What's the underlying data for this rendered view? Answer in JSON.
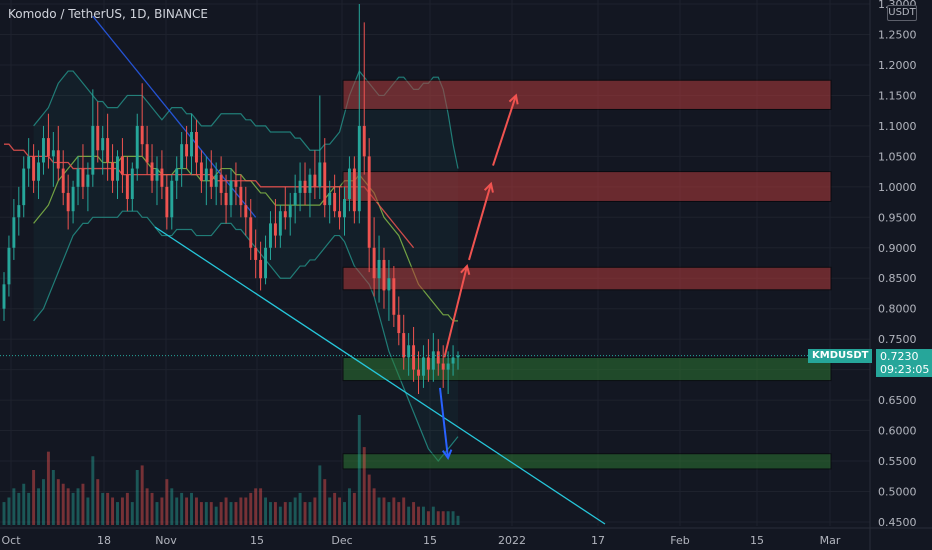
{
  "header": {
    "title": "Komodo / TetherUS, 1D, BINANCE",
    "currency": "USDT"
  },
  "last_price": {
    "symbol": "KMDUSDT",
    "price": "0.7230",
    "countdown": "09:23:05",
    "value": 0.723
  },
  "colors": {
    "bg": "#131722",
    "up": "#26a69a",
    "down": "#ef5350",
    "ma": "#ef5350",
    "ma_slow": "#2962ff",
    "band": "#26a69a",
    "trend": "#26c6da"
  },
  "chart_data": {
    "type": "candlestick",
    "y_ticks": [
      "1.3000",
      "1.2500",
      "1.2000",
      "1.1500",
      "1.1000",
      "1.0500",
      "1.0000",
      "0.9500",
      "0.9000",
      "0.8500",
      "0.8000",
      "0.7500",
      "0.7000",
      "0.6500",
      "0.6000",
      "0.5500",
      "0.5000",
      "0.4500"
    ],
    "ylim": [
      0.445,
      1.305
    ],
    "x_ticks": [
      "Oct",
      "18",
      "Nov",
      "15",
      "Dec",
      "15",
      "2022",
      "17",
      "Feb",
      "15",
      "Mar"
    ],
    "zones": [
      {
        "kind": "resistance",
        "top": 1.175,
        "bottom": 1.127
      },
      {
        "kind": "resistance",
        "top": 1.025,
        "bottom": 0.976
      },
      {
        "kind": "resistance",
        "top": 0.868,
        "bottom": 0.831
      },
      {
        "kind": "support",
        "top": 0.72,
        "bottom": 0.682
      },
      {
        "kind": "support",
        "top": 0.562,
        "bottom": 0.537
      }
    ],
    "candles": [
      [
        0.8,
        0.86,
        0.78,
        0.84,
        0.05
      ],
      [
        0.84,
        0.92,
        0.82,
        0.9,
        0.06
      ],
      [
        0.9,
        0.98,
        0.88,
        0.95,
        0.08
      ],
      [
        0.95,
        1.0,
        0.92,
        0.97,
        0.07
      ],
      [
        0.97,
        1.05,
        0.95,
        1.03,
        0.09
      ],
      [
        1.03,
        1.08,
        1.0,
        1.05,
        0.07
      ],
      [
        1.05,
        1.07,
        0.99,
        1.01,
        0.12
      ],
      [
        1.01,
        1.06,
        0.98,
        1.04,
        0.08
      ],
      [
        1.04,
        1.1,
        1.02,
        1.08,
        0.1
      ],
      [
        1.08,
        1.12,
        1.03,
        1.05,
        0.16
      ],
      [
        1.05,
        1.09,
        1.0,
        1.06,
        0.12
      ],
      [
        1.06,
        1.1,
        1.01,
        1.03,
        0.1
      ],
      [
        1.03,
        1.06,
        0.97,
        0.99,
        0.09
      ],
      [
        0.99,
        1.02,
        0.93,
        0.96,
        0.08
      ],
      [
        0.96,
        1.01,
        0.94,
        1.0,
        0.07
      ],
      [
        1.0,
        1.05,
        0.97,
        1.03,
        0.08
      ],
      [
        1.03,
        1.07,
        0.98,
        1.0,
        0.09
      ],
      [
        1.0,
        1.04,
        0.96,
        1.02,
        0.06
      ],
      [
        1.02,
        1.16,
        1.0,
        1.1,
        0.15
      ],
      [
        1.1,
        1.14,
        1.04,
        1.06,
        0.1
      ],
      [
        1.06,
        1.1,
        1.02,
        1.08,
        0.07
      ],
      [
        1.08,
        1.12,
        1.01,
        1.04,
        0.07
      ],
      [
        1.04,
        1.07,
        0.99,
        1.01,
        0.06
      ],
      [
        1.01,
        1.06,
        0.98,
        1.05,
        0.05
      ],
      [
        1.05,
        1.08,
        0.99,
        1.02,
        0.06
      ],
      [
        1.02,
        1.05,
        0.96,
        0.98,
        0.07
      ],
      [
        0.98,
        1.04,
        0.96,
        1.03,
        0.05
      ],
      [
        1.03,
        1.12,
        1.01,
        1.1,
        0.12
      ],
      [
        1.1,
        1.17,
        1.05,
        1.07,
        0.13
      ],
      [
        1.07,
        1.1,
        1.02,
        1.04,
        0.08
      ],
      [
        1.04,
        1.07,
        0.99,
        1.01,
        0.07
      ],
      [
        1.01,
        1.05,
        0.97,
        1.03,
        0.05
      ],
      [
        1.03,
        1.06,
        0.98,
        1.0,
        0.06
      ],
      [
        1.0,
        1.02,
        0.93,
        0.95,
        0.1
      ],
      [
        0.95,
        1.02,
        0.93,
        1.01,
        0.08
      ],
      [
        1.01,
        1.05,
        0.98,
        1.03,
        0.06
      ],
      [
        1.03,
        1.09,
        1.0,
        1.07,
        0.07
      ],
      [
        1.07,
        1.1,
        1.03,
        1.05,
        0.06
      ],
      [
        1.05,
        1.12,
        1.02,
        1.09,
        0.07
      ],
      [
        1.09,
        1.11,
        1.02,
        1.04,
        0.06
      ],
      [
        1.04,
        1.06,
        0.99,
        1.01,
        0.05
      ],
      [
        1.01,
        1.05,
        0.97,
        1.03,
        0.05
      ],
      [
        1.03,
        1.06,
        0.98,
        1.0,
        0.05
      ],
      [
        1.0,
        1.04,
        0.97,
        1.02,
        0.04
      ],
      [
        1.02,
        1.05,
        0.97,
        0.99,
        0.05
      ],
      [
        0.99,
        1.02,
        0.94,
        0.97,
        0.06
      ],
      [
        0.97,
        1.03,
        0.95,
        1.01,
        0.05
      ],
      [
        1.01,
        1.04,
        0.97,
        1.0,
        0.05
      ],
      [
        1.0,
        1.02,
        0.95,
        0.97,
        0.06
      ],
      [
        0.97,
        1.0,
        0.92,
        0.95,
        0.06
      ],
      [
        0.95,
        0.98,
        0.88,
        0.9,
        0.07
      ],
      [
        0.9,
        0.93,
        0.85,
        0.88,
        0.08
      ],
      [
        0.88,
        0.91,
        0.83,
        0.85,
        0.08
      ],
      [
        0.85,
        0.92,
        0.84,
        0.9,
        0.06
      ],
      [
        0.9,
        0.96,
        0.88,
        0.94,
        0.05
      ],
      [
        0.94,
        0.98,
        0.9,
        0.92,
        0.05
      ],
      [
        0.92,
        0.97,
        0.9,
        0.96,
        0.04
      ],
      [
        0.96,
        1.0,
        0.93,
        0.95,
        0.05
      ],
      [
        0.95,
        0.99,
        0.92,
        0.97,
        0.05
      ],
      [
        0.97,
        1.02,
        0.94,
        0.99,
        0.06
      ],
      [
        0.99,
        1.04,
        0.96,
        1.01,
        0.07
      ],
      [
        1.01,
        1.04,
        0.97,
        0.99,
        0.05
      ],
      [
        0.99,
        1.03,
        0.95,
        1.02,
        0.05
      ],
      [
        1.02,
        1.06,
        0.98,
        1.0,
        0.06
      ],
      [
        1.0,
        1.15,
        0.98,
        1.04,
        0.13
      ],
      [
        1.04,
        1.08,
        0.95,
        0.97,
        0.1
      ],
      [
        0.97,
        1.01,
        0.94,
        0.99,
        0.06
      ],
      [
        0.99,
        1.02,
        0.95,
        0.96,
        0.07
      ],
      [
        0.96,
        1.0,
        0.93,
        0.95,
        0.06
      ],
      [
        0.95,
        1.0,
        0.92,
        0.98,
        0.05
      ],
      [
        0.98,
        1.05,
        0.96,
        1.03,
        0.08
      ],
      [
        1.03,
        1.05,
        0.94,
        0.96,
        0.07
      ],
      [
        0.96,
        1.3,
        0.94,
        1.1,
        0.24
      ],
      [
        1.1,
        1.27,
        1.02,
        1.05,
        0.17
      ],
      [
        1.05,
        1.08,
        0.86,
        0.9,
        0.11
      ],
      [
        0.9,
        0.95,
        0.82,
        0.85,
        0.08
      ],
      [
        0.85,
        0.92,
        0.81,
        0.88,
        0.06
      ],
      [
        0.88,
        0.9,
        0.8,
        0.83,
        0.06
      ],
      [
        0.83,
        0.88,
        0.78,
        0.85,
        0.05
      ],
      [
        0.85,
        0.87,
        0.77,
        0.79,
        0.06
      ],
      [
        0.79,
        0.82,
        0.74,
        0.76,
        0.05
      ],
      [
        0.76,
        0.79,
        0.7,
        0.72,
        0.06
      ],
      [
        0.72,
        0.76,
        0.69,
        0.74,
        0.04
      ],
      [
        0.74,
        0.77,
        0.68,
        0.7,
        0.05
      ],
      [
        0.7,
        0.73,
        0.66,
        0.69,
        0.04
      ],
      [
        0.69,
        0.74,
        0.67,
        0.72,
        0.04
      ],
      [
        0.72,
        0.75,
        0.68,
        0.7,
        0.03
      ],
      [
        0.7,
        0.76,
        0.68,
        0.73,
        0.04
      ],
      [
        0.73,
        0.75,
        0.69,
        0.71,
        0.03
      ],
      [
        0.71,
        0.74,
        0.67,
        0.7,
        0.03
      ],
      [
        0.7,
        0.73,
        0.66,
        0.71,
        0.03
      ],
      [
        0.71,
        0.74,
        0.69,
        0.72,
        0.03
      ],
      [
        0.72,
        0.73,
        0.7,
        0.723,
        0.02
      ]
    ],
    "bands": {
      "upper": [
        1.1,
        1.11,
        1.12,
        1.13,
        1.15,
        1.17,
        1.18,
        1.19,
        1.19,
        1.18,
        1.17,
        1.16,
        1.15,
        1.14,
        1.14,
        1.13,
        1.13,
        1.13,
        1.14,
        1.15,
        1.15,
        1.15,
        1.15,
        1.14,
        1.13,
        1.12,
        1.11,
        1.12,
        1.13,
        1.13,
        1.13,
        1.12,
        1.12,
        1.11,
        1.1,
        1.1,
        1.1,
        1.11,
        1.12,
        1.12,
        1.12,
        1.12,
        1.12,
        1.11,
        1.11,
        1.1,
        1.1,
        1.1,
        1.09,
        1.09,
        1.09,
        1.09,
        1.09,
        1.08,
        1.08,
        1.07,
        1.06,
        1.06,
        1.06,
        1.07,
        1.07,
        1.08,
        1.09,
        1.12,
        1.15,
        1.17,
        1.19,
        1.18,
        1.17,
        1.16,
        1.15,
        1.15,
        1.16,
        1.17,
        1.18,
        1.18,
        1.17,
        1.16,
        1.16,
        1.17,
        1.17,
        1.18,
        1.18,
        1.16,
        1.12,
        1.07,
        1.03
      ],
      "lower": [
        0.78,
        0.79,
        0.8,
        0.82,
        0.84,
        0.86,
        0.88,
        0.9,
        0.92,
        0.93,
        0.94,
        0.94,
        0.95,
        0.95,
        0.95,
        0.95,
        0.95,
        0.95,
        0.96,
        0.96,
        0.96,
        0.96,
        0.95,
        0.95,
        0.94,
        0.93,
        0.92,
        0.92,
        0.92,
        0.93,
        0.93,
        0.93,
        0.93,
        0.92,
        0.92,
        0.92,
        0.92,
        0.93,
        0.94,
        0.94,
        0.94,
        0.93,
        0.93,
        0.92,
        0.91,
        0.9,
        0.89,
        0.88,
        0.87,
        0.86,
        0.85,
        0.85,
        0.85,
        0.86,
        0.87,
        0.87,
        0.88,
        0.88,
        0.89,
        0.9,
        0.91,
        0.92,
        0.92,
        0.91,
        0.89,
        0.87,
        0.86,
        0.85,
        0.84,
        0.82,
        0.79,
        0.76,
        0.73,
        0.71,
        0.69,
        0.67,
        0.65,
        0.63,
        0.61,
        0.59,
        0.57,
        0.56,
        0.55,
        0.56,
        0.57,
        0.58,
        0.59
      ],
      "basis": [
        0.94,
        0.95,
        0.96,
        0.97,
        0.99,
        1.01,
        1.02,
        1.03,
        1.04,
        1.05,
        1.05,
        1.05,
        1.05,
        1.05,
        1.04,
        1.04,
        1.04,
        1.04,
        1.05,
        1.05,
        1.05,
        1.05,
        1.05,
        1.04,
        1.03,
        1.03,
        1.02,
        1.02,
        1.02,
        1.03,
        1.03,
        1.03,
        1.02,
        1.02,
        1.01,
        1.01,
        1.01,
        1.02,
        1.03,
        1.03,
        1.03,
        1.02,
        1.02,
        1.01,
        1.01,
        1.0,
        0.99,
        0.99,
        0.98,
        0.97,
        0.97,
        0.97,
        0.97,
        0.97,
        0.97,
        0.97,
        0.97,
        0.97,
        0.97,
        0.98,
        0.99,
        1.0,
        1.0,
        1.01,
        1.01,
        1.01,
        1.02,
        1.01,
        1.0,
        0.99,
        0.97,
        0.95,
        0.94,
        0.93,
        0.92,
        0.9,
        0.88,
        0.86,
        0.84,
        0.83,
        0.82,
        0.81,
        0.8,
        0.79,
        0.79,
        0.78,
        0.78
      ]
    },
    "ma_fast_from": 0,
    "ma_fast": [
      1.07,
      1.07,
      1.06,
      1.06,
      1.06,
      1.05,
      1.05,
      1.05,
      1.05,
      1.05,
      1.04,
      1.04,
      1.04,
      1.04,
      1.03,
      1.03,
      1.03,
      1.03,
      1.03,
      1.03,
      1.03,
      1.03,
      1.03,
      1.03,
      1.02,
      1.02,
      1.02,
      1.02,
      1.02,
      1.02,
      1.02,
      1.02,
      1.02,
      1.02,
      1.02,
      1.02,
      1.02,
      1.02,
      1.02,
      1.02,
      1.02,
      1.02,
      1.02,
      1.01,
      1.01,
      1.01,
      1.01,
      1.01,
      1.01,
      1.01,
      1.01,
      1.01,
      1.0,
      1.0,
      1.0,
      1.0,
      1.0,
      1.0,
      1.0,
      1.0,
      1.0,
      1.0,
      1.0,
      1.0,
      1.0,
      1.0,
      1.0,
      1.0,
      1.0,
      1.0,
      1.0,
      1.0,
      1.0,
      1.0,
      0.99,
      0.98,
      0.97,
      0.96,
      0.95,
      0.94,
      0.93,
      0.92,
      0.91,
      0.9
    ],
    "ma_slow_from": 18,
    "ma_slow": [
      1.28,
      1.27,
      1.26,
      1.25,
      1.24,
      1.23,
      1.22,
      1.21,
      1.2,
      1.19,
      1.18,
      1.17,
      1.16,
      1.15,
      1.14,
      1.13,
      1.12,
      1.11,
      1.1,
      1.09,
      1.08,
      1.07,
      1.06,
      1.05,
      1.04,
      1.03,
      1.02,
      1.01,
      1.0,
      0.99,
      0.98,
      0.97,
      0.96,
      0.95
    ],
    "trendline": [
      [
        0.5,
        0.5
      ]
    ],
    "volume_max": 0.24,
    "arrows": [
      {
        "color": "#f05350",
        "from": [
          0.722,
          0.72
        ],
        "to": [
          0.835,
          0.87
        ]
      },
      {
        "color": "#f05350",
        "from": [
          0.845,
          0.88
        ],
        "to": [
          0.955,
          1.005
        ]
      },
      {
        "color": "#f05350",
        "from": [
          0.965,
          1.035
        ],
        "to": [
          1.08,
          1.15
        ]
      },
      {
        "color": "#2962ff",
        "from": [
          0.7,
          0.67
        ],
        "to": [
          0.74,
          0.555
        ]
      }
    ]
  }
}
